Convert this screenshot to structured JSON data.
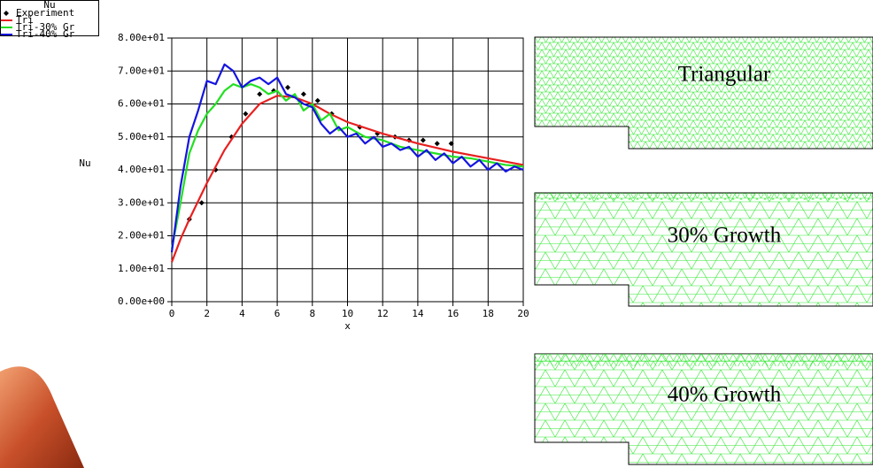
{
  "chart_data": {
    "type": "line",
    "legend_title": "Nu",
    "x_label": "x",
    "y_label": "Nu",
    "xlim": [
      0,
      20
    ],
    "xticks": [
      0,
      2,
      4,
      6,
      8,
      10,
      12,
      14,
      16,
      18,
      20
    ],
    "ylim": [
      0,
      80
    ],
    "yticks": [
      {
        "value": 0,
        "label": "0.00e+00"
      },
      {
        "value": 10,
        "label": "1.00e+01"
      },
      {
        "value": 20,
        "label": "2.00e+01"
      },
      {
        "value": 30,
        "label": "3.00e+01"
      },
      {
        "value": 40,
        "label": "4.00e+01"
      },
      {
        "value": 50,
        "label": "5.00e+01"
      },
      {
        "value": 60,
        "label": "6.00e+01"
      },
      {
        "value": 70,
        "label": "7.00e+01"
      },
      {
        "value": 80,
        "label": "8.00e+01"
      }
    ],
    "grid": true,
    "series": [
      {
        "name": "Experiment",
        "color": "#000000",
        "marker": "point",
        "x": [
          1,
          1.7,
          2.5,
          3.4,
          4.2,
          5,
          5.8,
          6.6,
          7.5,
          8.3,
          9.1,
          10.7,
          11.7,
          12.7,
          13.5,
          14.3,
          15.1,
          15.9
        ],
        "values": [
          25,
          30,
          40,
          50,
          57,
          63,
          64,
          65,
          63,
          61,
          57,
          53,
          51,
          50,
          49,
          49,
          48,
          48
        ]
      },
      {
        "name": "Tri",
        "color": "#e82020",
        "x": [
          0,
          0.5,
          1,
          2,
          3,
          4,
          5,
          6,
          7,
          8,
          9,
          10,
          12,
          14,
          16,
          18,
          20
        ],
        "values": [
          12,
          19,
          25,
          36,
          46,
          54,
          60,
          62.5,
          62,
          60,
          57,
          54.5,
          51,
          48,
          45.5,
          43.5,
          41.5
        ]
      },
      {
        "name": "Tri-30% Gr",
        "color": "#22e022",
        "x": [
          0,
          0.5,
          1,
          1.5,
          2,
          2.5,
          3,
          3.5,
          4,
          4.5,
          5,
          5.5,
          6,
          6.5,
          7,
          7.5,
          8,
          8.5,
          9,
          9.5,
          10,
          11,
          12,
          13,
          14,
          15,
          16,
          17,
          18,
          19,
          20
        ],
        "values": [
          16,
          30,
          45,
          52,
          57,
          60,
          64,
          66,
          65,
          66,
          65,
          63,
          64,
          61,
          63,
          58,
          60,
          55,
          57,
          52,
          53,
          50,
          49,
          47,
          46,
          45,
          44,
          43.5,
          42.5,
          41.5,
          41
        ]
      },
      {
        "name": "Tri-40% Gr",
        "color": "#1414e0",
        "x": [
          0,
          0.5,
          1,
          1.5,
          2,
          2.5,
          3,
          3.5,
          4,
          4.5,
          5,
          5.5,
          6,
          6.5,
          7,
          7.5,
          8,
          8.5,
          9,
          9.5,
          10,
          10.5,
          11,
          11.5,
          12,
          12.5,
          13,
          13.5,
          14,
          14.5,
          15,
          15.5,
          16,
          16.5,
          17,
          17.5,
          18,
          18.5,
          19,
          19.5,
          20
        ],
        "values": [
          15,
          35,
          50,
          58,
          67,
          66,
          72,
          70,
          65,
          67,
          68,
          66,
          68,
          63,
          62,
          60,
          59,
          54,
          51,
          53,
          50,
          51,
          48,
          50,
          47,
          48,
          46,
          47,
          44,
          46,
          43,
          45,
          42,
          44,
          41,
          43,
          40,
          42,
          39.5,
          41,
          40
        ]
      }
    ]
  },
  "mesh_panels": [
    {
      "label": "Triangular"
    },
    {
      "label": "30% Growth"
    },
    {
      "label": "40% Growth"
    }
  ]
}
